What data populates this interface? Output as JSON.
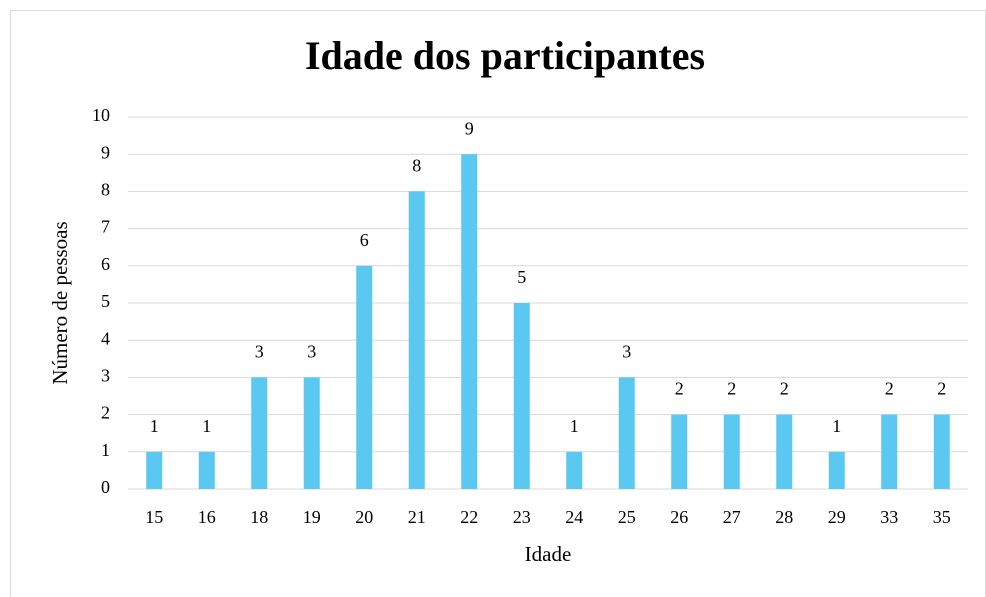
{
  "chart_data": {
    "type": "bar",
    "title": "Idade dos participantes",
    "x_label": "Idade",
    "y_label": "Número de pessoas",
    "categories": [
      "15",
      "16",
      "18",
      "19",
      "20",
      "21",
      "22",
      "23",
      "24",
      "25",
      "26",
      "27",
      "28",
      "29",
      "33",
      "35"
    ],
    "values": [
      1,
      1,
      3,
      3,
      6,
      8,
      9,
      5,
      1,
      3,
      2,
      2,
      2,
      1,
      2,
      2
    ],
    "color": "#5bc8f2",
    "ylim": [
      0,
      10
    ],
    "yticks": [
      0,
      1,
      2,
      3,
      4,
      5,
      6,
      7,
      8,
      9,
      10
    ],
    "grid": true
  }
}
